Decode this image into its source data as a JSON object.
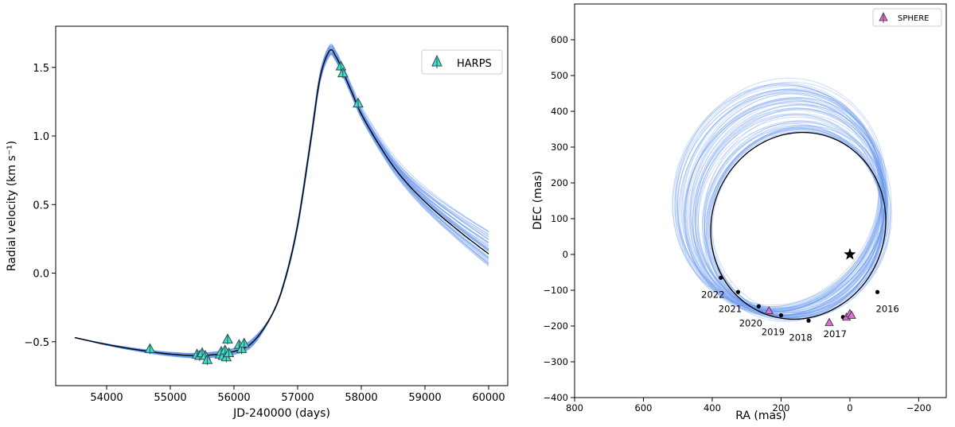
{
  "chart_data": [
    {
      "type": "line",
      "xlabel": "JD-240000 (days)",
      "ylabel": "Radial velocity (km s⁻¹)",
      "xlim": [
        53200,
        60300
      ],
      "ylim": [
        -0.82,
        1.8
      ],
      "xticks": [
        54000,
        55000,
        56000,
        57000,
        58000,
        59000,
        60000
      ],
      "yticks": [
        -0.5,
        0.0,
        0.5,
        1.0,
        1.5
      ],
      "ytick_labels": [
        "−0.5",
        "0.0",
        "0.5",
        "1.0",
        "1.5"
      ],
      "legend": {
        "label": "HARPS",
        "position": "top-right"
      },
      "colors": {
        "model": "#000000",
        "samples": "#6495ed",
        "marker": "#40e0d0"
      },
      "best_fit_line": {
        "x": [
          53500,
          54000,
          54500,
          55000,
          55500,
          56000,
          56300,
          56600,
          56800,
          57000,
          57200,
          57350,
          57500,
          57600,
          57700,
          57850,
          58000,
          58300,
          58600,
          59000,
          59500,
          60000
        ],
        "y": [
          -0.47,
          -0.52,
          -0.56,
          -0.59,
          -0.6,
          -0.57,
          -0.5,
          -0.3,
          -0.05,
          0.35,
          0.95,
          1.42,
          1.62,
          1.58,
          1.48,
          1.32,
          1.16,
          0.92,
          0.72,
          0.52,
          0.32,
          0.14
        ]
      },
      "sample_band_spread_at_end": [
        0.05,
        0.31
      ],
      "series": [
        {
          "name": "HARPS",
          "x": [
            54680,
            55420,
            55460,
            55500,
            55550,
            55580,
            55780,
            55800,
            55830,
            55860,
            55880,
            55900,
            55920,
            56080,
            56120,
            56160,
            57680,
            57710,
            57950
          ],
          "y": [
            -0.55,
            -0.59,
            -0.6,
            -0.58,
            -0.6,
            -0.63,
            -0.59,
            -0.57,
            -0.6,
            -0.56,
            -0.61,
            -0.48,
            -0.58,
            -0.52,
            -0.55,
            -0.51,
            1.51,
            1.46,
            1.24
          ]
        }
      ]
    },
    {
      "type": "scatter",
      "xlabel": "RA (mas)",
      "ylabel": "DEC (mas)",
      "xlim": [
        800,
        -280
      ],
      "ylim": [
        -400,
        700
      ],
      "xticks": [
        800,
        600,
        400,
        200,
        0,
        -200
      ],
      "xtick_labels": [
        "800",
        "600",
        "400",
        "200",
        "0",
        "−200"
      ],
      "yticks": [
        -400,
        -300,
        -200,
        -100,
        0,
        100,
        200,
        300,
        400,
        500,
        600
      ],
      "ytick_labels": [
        "−400",
        "−300",
        "−200",
        "−100",
        "0",
        "100",
        "200",
        "300",
        "400",
        "500",
        "600"
      ],
      "legend": {
        "label": "SPHERE",
        "position": "top-right"
      },
      "colors": {
        "orbit": "#000000",
        "samples": "#6495ed",
        "marker": "#da70d6"
      },
      "star": {
        "ra": 0,
        "dec": 0
      },
      "orbit": {
        "center_ra": 150,
        "center_dec": 80,
        "semi_ra": 250,
        "semi_dec": 265,
        "tilt_deg": 32
      },
      "series": [
        {
          "name": "SPHERE",
          "ra": [
            10,
            0,
            -5,
            60,
            235
          ],
          "dec": [
            -175,
            -165,
            -170,
            -190,
            -157
          ]
        }
      ],
      "epochs": [
        {
          "label": "2016",
          "ra": -80,
          "dec": -105
        },
        {
          "label": "2017",
          "ra": 20,
          "dec": -175
        },
        {
          "label": "2018",
          "ra": 120,
          "dec": -185
        },
        {
          "label": "2019",
          "ra": 200,
          "dec": -170
        },
        {
          "label": "2020",
          "ra": 265,
          "dec": -145
        },
        {
          "label": "2021",
          "ra": 325,
          "dec": -105
        },
        {
          "label": "2022",
          "ra": 375,
          "dec": -65
        }
      ]
    }
  ]
}
